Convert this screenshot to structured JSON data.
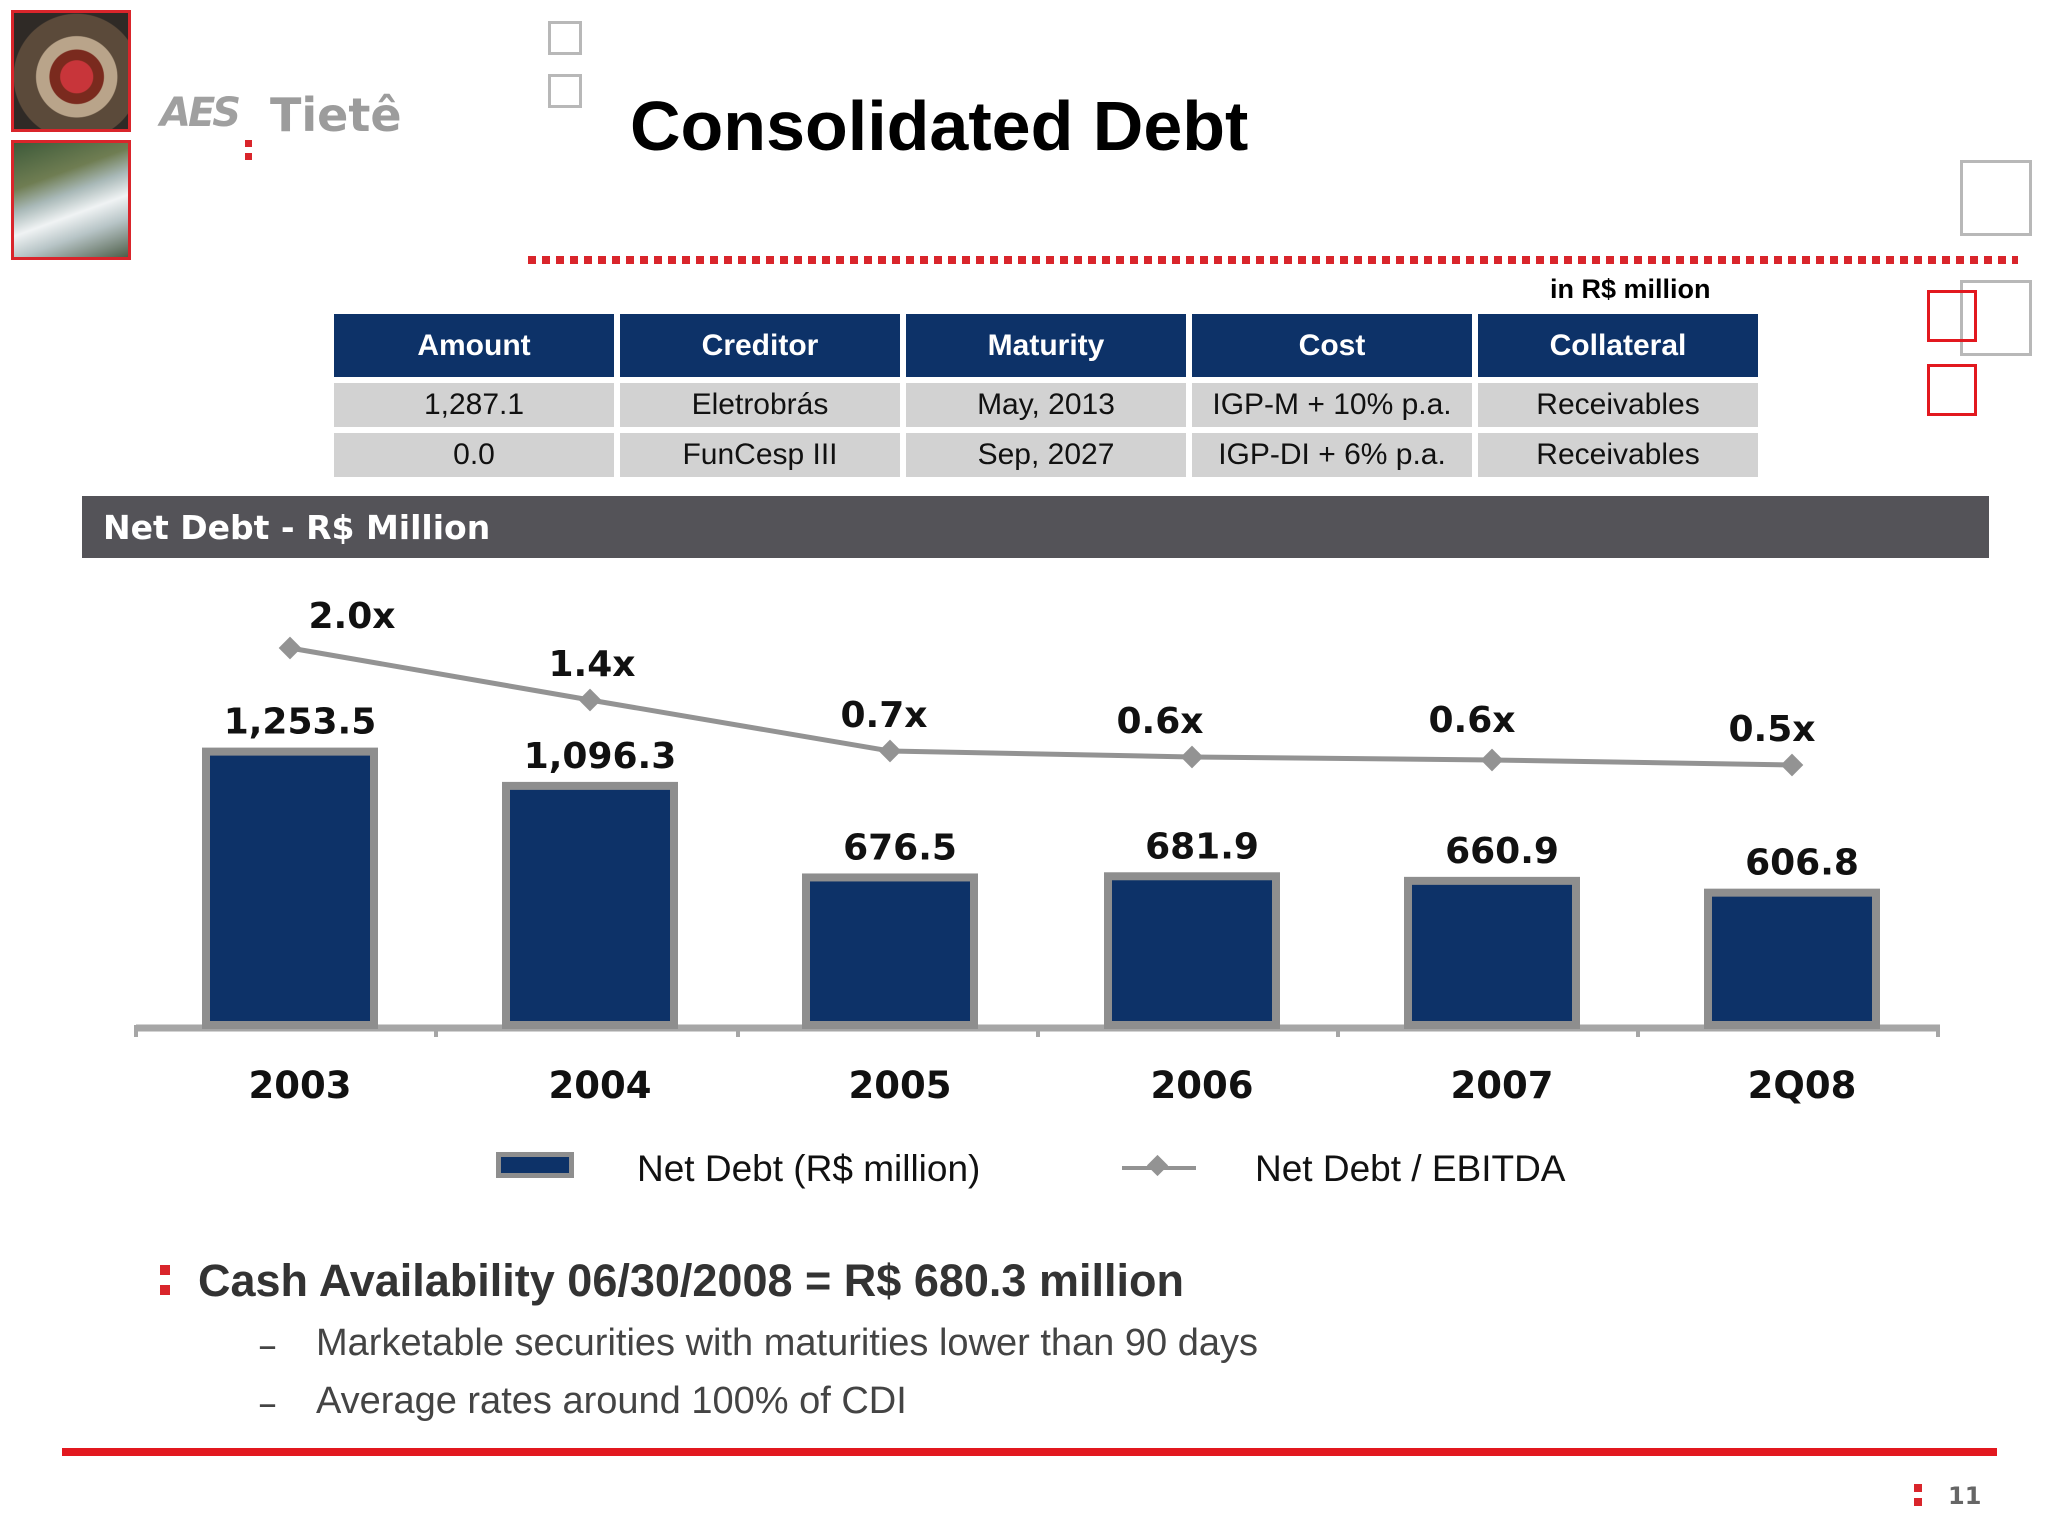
{
  "header": {
    "title": "Consolidated Debt",
    "logo": {
      "brand": "AES",
      "name": "Tietê"
    },
    "unit_note": "in R$ million"
  },
  "debt_table": {
    "columns": [
      "Amount",
      "Creditor",
      "Maturity",
      "Cost",
      "Collateral"
    ],
    "rows": [
      [
        "1,287.1",
        "Eletrobrás",
        "May, 2013",
        "IGP-M + 10% p.a.",
        "Receivables"
      ],
      [
        "0.0",
        "FunCesp III",
        "Sep, 2027",
        "IGP-DI + 6% p.a.",
        "Receivables"
      ]
    ]
  },
  "section": {
    "title": "Net Debt - R$ Million"
  },
  "chart_data": {
    "type": "bar",
    "categories": [
      "2003",
      "2004",
      "2005",
      "2006",
      "2007",
      "2Q08"
    ],
    "series": [
      {
        "name": "Net Debt (R$ million)",
        "type": "bar",
        "values": [
          1253.5,
          1096.3,
          676.5,
          681.9,
          660.9,
          606.8
        ],
        "labels": [
          "1,253.5",
          "1,096.3",
          "676.5",
          "681.9",
          "660.9",
          "606.8"
        ],
        "color": "#0d3268"
      },
      {
        "name": "Net Debt / EBITDA",
        "type": "line",
        "values": [
          2.0,
          1.4,
          0.7,
          0.6,
          0.6,
          0.5
        ],
        "labels": [
          "2.0x",
          "1.4x",
          "0.7x",
          "0.6x",
          "0.6x",
          "0.5x"
        ],
        "color": "#939393"
      }
    ],
    "legend_position": "bottom",
    "grid": false
  },
  "notes": {
    "headline": "Cash Availability 06/30/2008 = R$ 680.3 million",
    "items": [
      "Marketable securities with maturities lower than 90 days",
      "Average rates around 100% of CDI"
    ],
    "dash": "–"
  },
  "footer": {
    "page_number": "11"
  },
  "colors": {
    "accent_red": "#d9252b",
    "navy": "#0d3268",
    "band_grey": "#545358"
  }
}
